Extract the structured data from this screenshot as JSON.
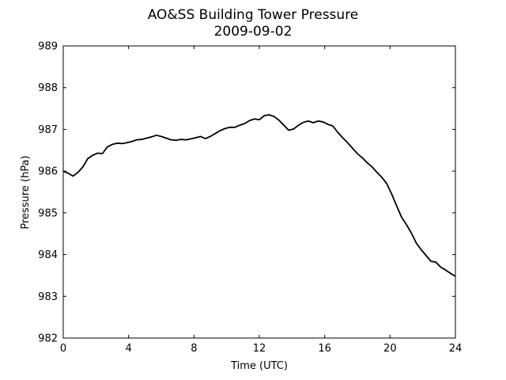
{
  "chart_data": {
    "type": "line",
    "title": "AO&SS Building Tower Pressure",
    "subtitle": "2009-09-02",
    "xlabel": "Time (UTC)",
    "ylabel": "Pressure (hPa)",
    "xlim": [
      0,
      24
    ],
    "ylim": [
      982,
      989
    ],
    "xticks": [
      0,
      4,
      8,
      12,
      16,
      20,
      24
    ],
    "yticks": [
      982,
      983,
      984,
      985,
      986,
      987,
      988,
      989
    ],
    "grid": false,
    "line_color": "#000000",
    "series": [
      {
        "x": [
          0,
          0.3,
          0.6,
          0.9,
          1.2,
          1.5,
          1.8,
          2.1,
          2.4,
          2.7,
          3.0,
          3.3,
          3.6,
          3.9,
          4.2,
          4.5,
          4.8,
          5.1,
          5.4,
          5.7,
          6.0,
          6.3,
          6.6,
          6.9,
          7.2,
          7.5,
          7.8,
          8.1,
          8.4,
          8.7,
          9.0,
          9.3,
          9.6,
          9.9,
          10.2,
          10.5,
          10.8,
          11.1,
          11.4,
          11.7,
          12.0,
          12.3,
          12.6,
          12.9,
          13.2,
          13.5,
          13.8,
          14.1,
          14.4,
          14.7,
          15.0,
          15.3,
          15.6,
          15.9,
          16.2,
          16.5,
          16.8,
          17.1,
          17.4,
          17.7,
          18.0,
          18.3,
          18.6,
          18.9,
          19.2,
          19.5,
          19.8,
          20.1,
          20.4,
          20.7,
          21.0,
          21.3,
          21.6,
          21.9,
          22.2,
          22.5,
          22.8,
          23.1,
          23.4,
          23.7,
          24.0
        ],
        "y": [
          986.0,
          985.95,
          985.88,
          985.97,
          986.1,
          986.3,
          986.38,
          986.43,
          986.42,
          986.58,
          986.64,
          986.67,
          986.66,
          986.68,
          986.71,
          986.75,
          986.76,
          986.79,
          986.82,
          986.86,
          986.83,
          986.79,
          986.75,
          986.74,
          986.76,
          986.75,
          986.77,
          986.8,
          986.83,
          986.78,
          986.83,
          986.9,
          986.97,
          987.02,
          987.05,
          987.05,
          987.1,
          987.14,
          987.21,
          987.25,
          987.23,
          987.33,
          987.35,
          987.31,
          987.22,
          987.1,
          986.98,
          987.01,
          987.1,
          987.17,
          987.2,
          987.16,
          987.2,
          987.18,
          987.12,
          987.08,
          986.93,
          986.8,
          986.68,
          986.55,
          986.42,
          986.32,
          986.2,
          986.1,
          985.97,
          985.85,
          985.7,
          985.45,
          985.17,
          984.9,
          984.72,
          984.52,
          984.28,
          984.12,
          983.98,
          983.84,
          983.82,
          983.7,
          983.63,
          983.55,
          983.48
        ]
      }
    ]
  }
}
